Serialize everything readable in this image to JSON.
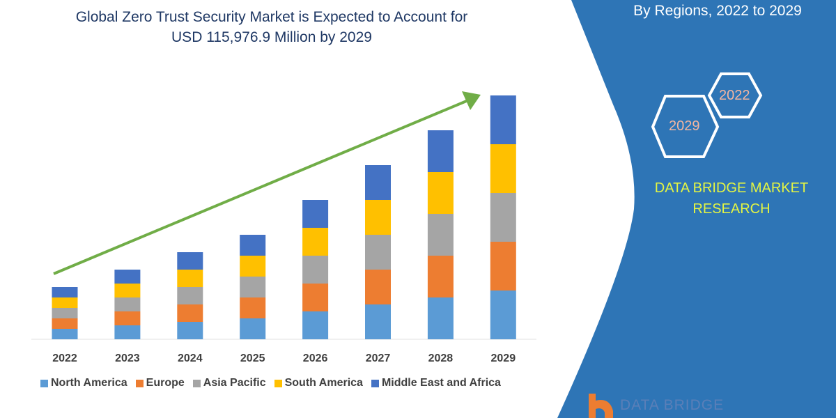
{
  "header": {
    "title_line1": "Global Zero Trust Security Market is Expected to Account for",
    "title_line2": "USD 115,976.9 Million by 2029"
  },
  "panel": {
    "subtitle": "By Regions, 2022 to 2029",
    "hex_years": [
      "2022",
      "2029"
    ],
    "brand_line1": "DATA BRIDGE MARKET",
    "brand_line2": "RESEARCH",
    "logo_text": "DATA BRIDGE",
    "color": "#2E75B6"
  },
  "chart_data": {
    "type": "bar",
    "stacked": true,
    "categories": [
      "2022",
      "2023",
      "2024",
      "2025",
      "2026",
      "2027",
      "2028",
      "2029"
    ],
    "series": [
      {
        "name": "North America",
        "color": "#5B9BD5",
        "values": [
          15,
          20,
          25,
          30,
          40,
          50,
          60,
          70
        ]
      },
      {
        "name": "Europe",
        "color": "#ED7D31",
        "values": [
          15,
          20,
          25,
          30,
          40,
          50,
          60,
          70
        ]
      },
      {
        "name": "Asia Pacific",
        "color": "#A5A5A5",
        "values": [
          15,
          20,
          25,
          30,
          40,
          50,
          60,
          70
        ]
      },
      {
        "name": "South America",
        "color": "#FFC000",
        "values": [
          15,
          20,
          25,
          30,
          40,
          50,
          60,
          70
        ]
      },
      {
        "name": "Middle East and Africa",
        "color": "#4472C4",
        "values": [
          15,
          20,
          25,
          30,
          40,
          50,
          60,
          70
        ]
      }
    ],
    "ylim": [
      0,
      350
    ],
    "y_axis_shown": false,
    "grid": false,
    "legend_placement": "bottom",
    "trend_arrow_color": "#70AD47"
  }
}
